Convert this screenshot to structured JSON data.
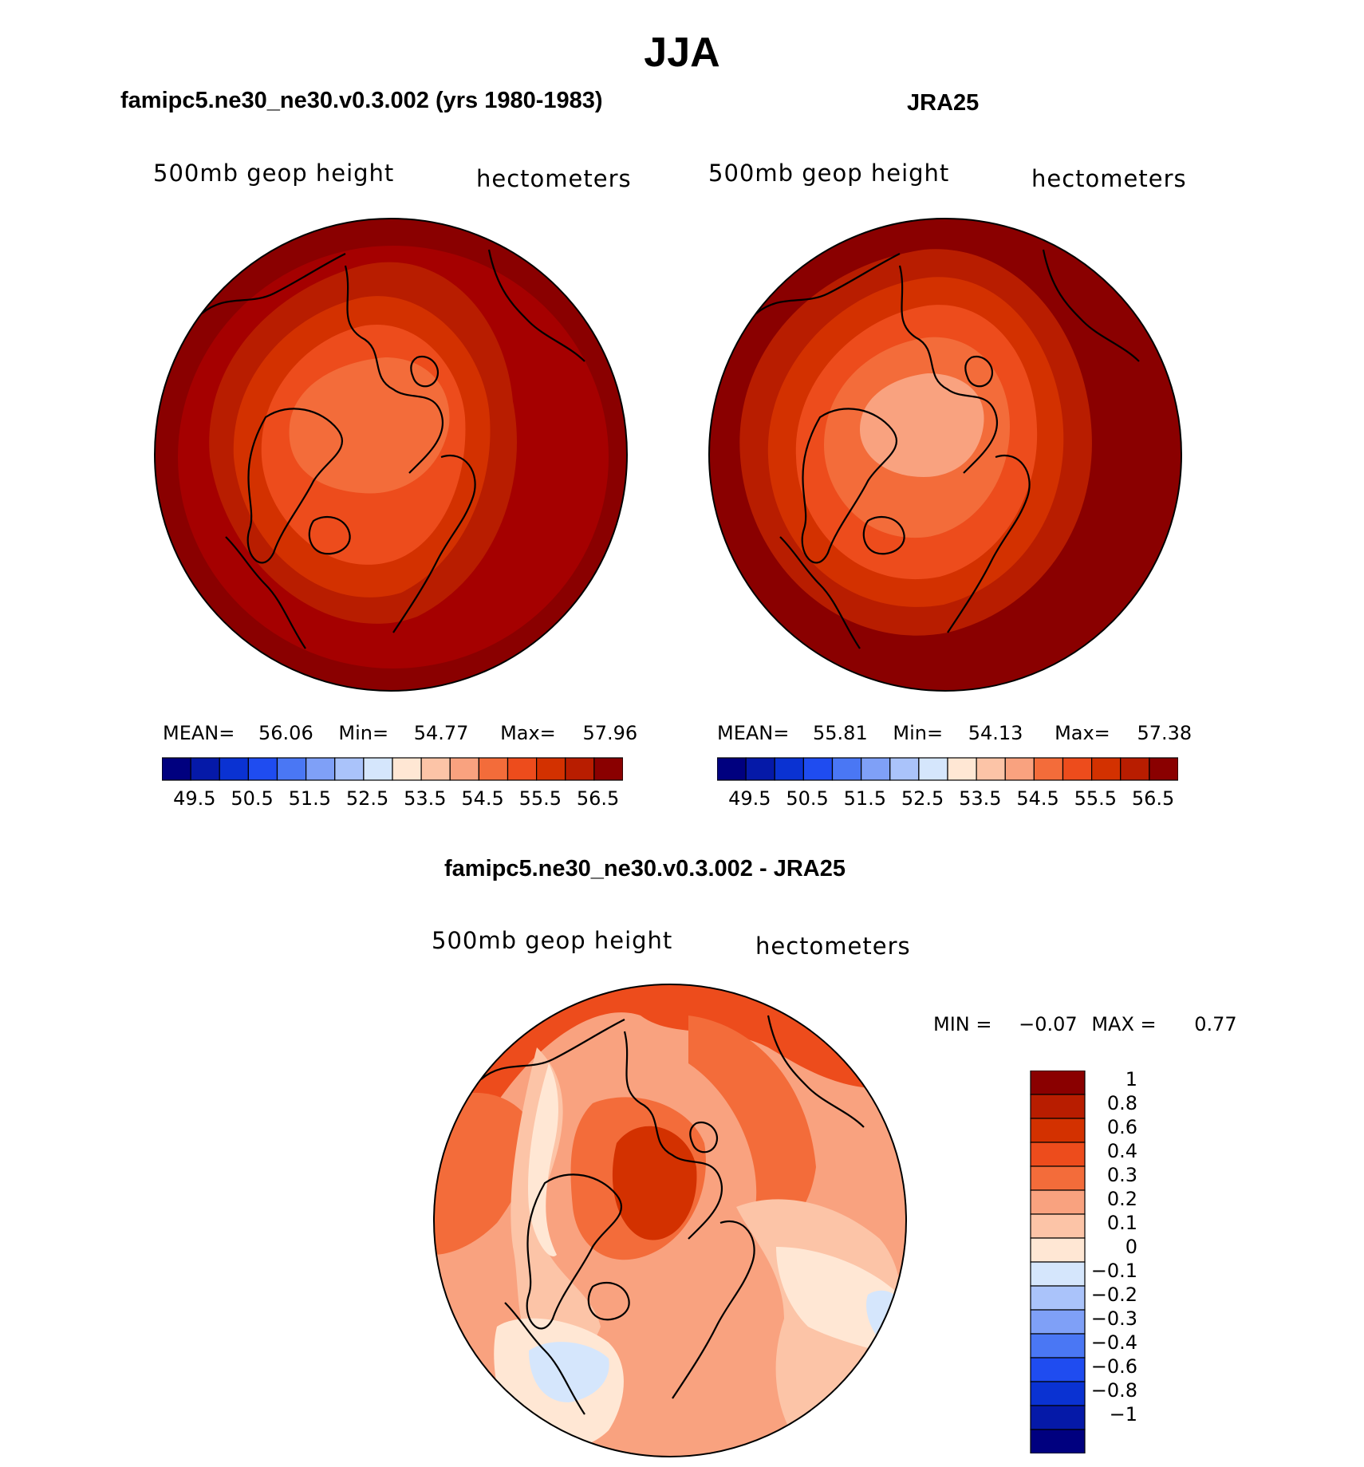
{
  "main_title": "JJA",
  "panels": [
    {
      "title": "famipc5.ne30_ne30.v0.3.002 (yrs 1980-1983)",
      "left_label": "500mb geop height",
      "right_label": "hectometers",
      "stats": {
        "mean_label": "MEAN=",
        "mean": "56.06",
        "min_label": "Min=",
        "min": "54.77",
        "max_label": "Max=",
        "max": "57.96"
      },
      "bands": [
        "#a50000",
        "#b81d00",
        "#d33100",
        "#ed4c1c",
        "#f36c3a"
      ]
    },
    {
      "title": "JRA25",
      "left_label": "500mb geop height",
      "right_label": "hectometers",
      "stats": {
        "mean_label": "MEAN=",
        "mean": "55.81",
        "min_label": "Min=",
        "min": "54.13",
        "max_label": "Max=",
        "max": "57.38"
      },
      "bands": [
        "#8a0000",
        "#b81d00",
        "#d33100",
        "#ed4c1c",
        "#f36c3a",
        "#f9a27f"
      ]
    }
  ],
  "colorbar": {
    "colors": [
      "#00007f",
      "#0519a8",
      "#0a32d2",
      "#1f4cf0",
      "#4a77f4",
      "#7fa0f7",
      "#aac3fa",
      "#d5e6fc",
      "#ffe7d4",
      "#fcc4a7",
      "#f9a27f",
      "#f36c3a",
      "#ed4c1c",
      "#d33100",
      "#b81d00",
      "#8a0000"
    ],
    "labels": [
      "49.5",
      "50.5",
      "51.5",
      "52.5",
      "53.5",
      "54.5",
      "55.5",
      "56.5"
    ]
  },
  "diff_panel": {
    "title": "famipc5.ne30_ne30.v0.3.002 - JRA25",
    "left_label": "500mb geop height",
    "right_label": "hectometers",
    "minmax": {
      "min_label": "MIN =",
      "min": "−0.07",
      "max_label": "MAX =",
      "max": "0.77"
    },
    "colorbar": {
      "colors_top_down": [
        "#8a0000",
        "#b81d00",
        "#d33100",
        "#ed4c1c",
        "#f36c3a",
        "#f9a27f",
        "#fcc4a7",
        "#ffe7d4",
        "#d5e6fc",
        "#aac3fa",
        "#7fa0f7",
        "#4a77f4",
        "#1f4cf0",
        "#0a32d2",
        "#0519a8",
        "#00007f"
      ],
      "labels": [
        "1",
        "0.8",
        "0.6",
        "0.4",
        "0.3",
        "0.2",
        "0.1",
        "0",
        "−0.1",
        "−0.2",
        "−0.3",
        "−0.4",
        "−0.6",
        "−0.8",
        "−1"
      ]
    }
  }
}
